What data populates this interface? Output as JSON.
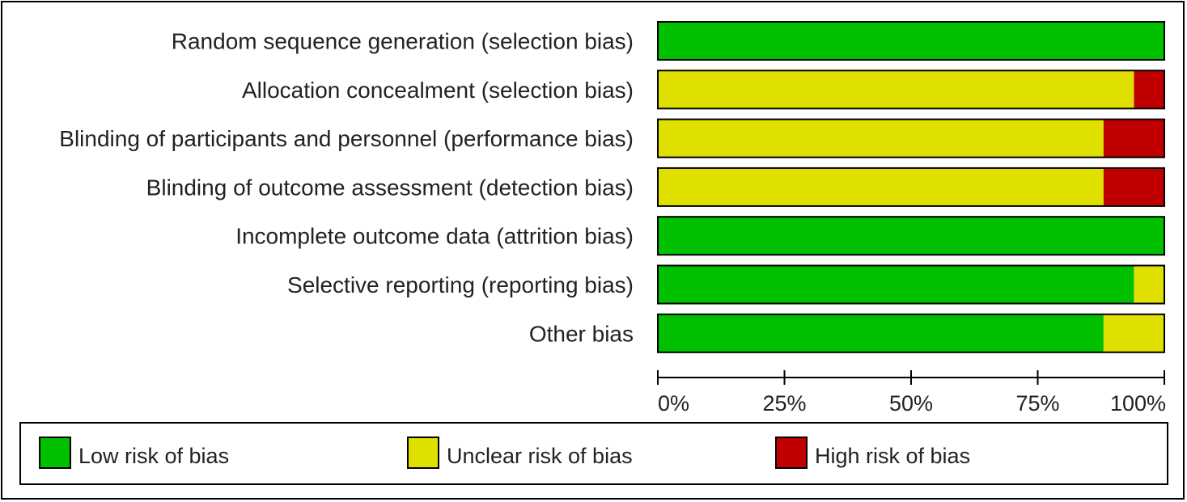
{
  "chart_data": {
    "type": "bar",
    "orientation": "horizontal",
    "stacked": true,
    "title": "",
    "xlabel": "",
    "ylabel": "",
    "xlim": [
      0,
      100
    ],
    "grid": false,
    "legend_position": "bottom",
    "categories": [
      "Random sequence generation (selection bias)",
      "Allocation concealment (selection bias)",
      "Blinding of participants and personnel (performance bias)",
      "Blinding of outcome assessment (detection bias)",
      "Incomplete outcome data (attrition bias)",
      "Selective reporting (reporting bias)",
      "Other bias"
    ],
    "series": [
      {
        "name": "Low risk of bias",
        "color": "#00c000",
        "values": [
          100,
          0,
          0,
          0,
          100,
          94,
          88
        ]
      },
      {
        "name": "Unclear risk of bias",
        "color": "#e0e000",
        "values": [
          0,
          94,
          88,
          88,
          0,
          6,
          12
        ]
      },
      {
        "name": "High risk of bias",
        "color": "#c00000",
        "values": [
          0,
          6,
          12,
          12,
          0,
          0,
          0
        ]
      }
    ],
    "x_ticks": [
      0,
      25,
      50,
      75,
      100
    ],
    "x_tick_labels": [
      "0%",
      "25%",
      "50%",
      "75%",
      "100%"
    ]
  }
}
